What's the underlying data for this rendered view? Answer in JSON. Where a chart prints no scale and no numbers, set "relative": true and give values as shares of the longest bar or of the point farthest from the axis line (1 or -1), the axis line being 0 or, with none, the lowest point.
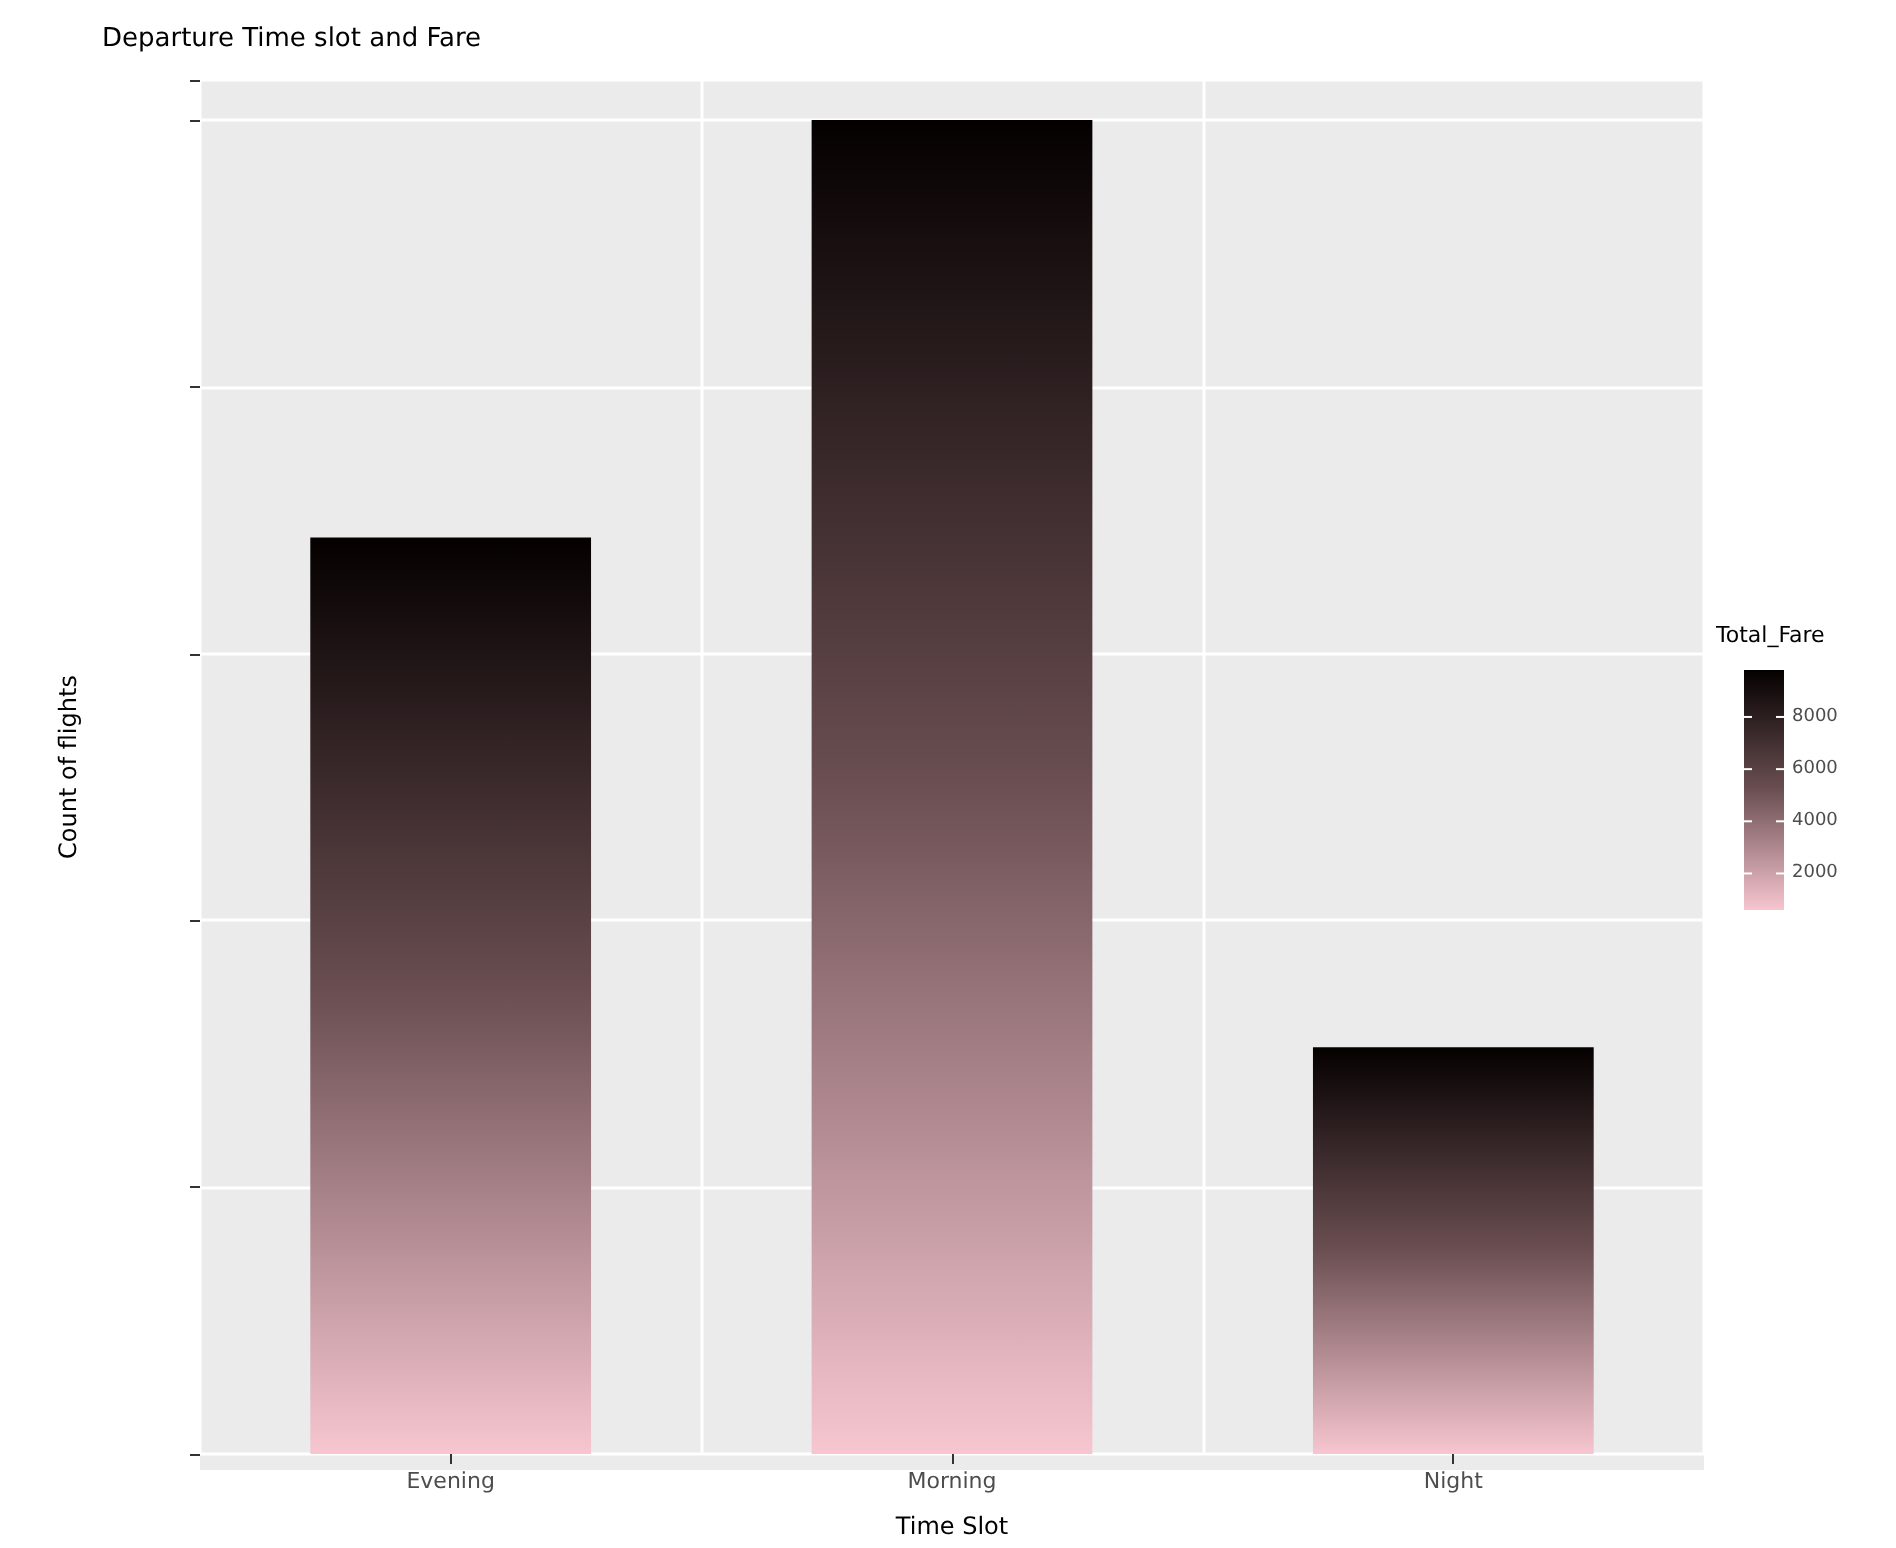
{
  "chart_data": {
    "type": "bar",
    "title": "Departure Time slot and Fare",
    "xlabel": "Time Slot",
    "ylabel": "Count of flights",
    "clabel": "Total_Fare",
    "categories": [
      "Evening",
      "Morning",
      "Night"
    ],
    "values": [
      0.687,
      1,
      0.305
    ],
    "relative": true,
    "grid": true,
    "clim": [
      600,
      9800
    ],
    "cticks": [
      2000,
      4000,
      6000,
      8000
    ]
  }
}
